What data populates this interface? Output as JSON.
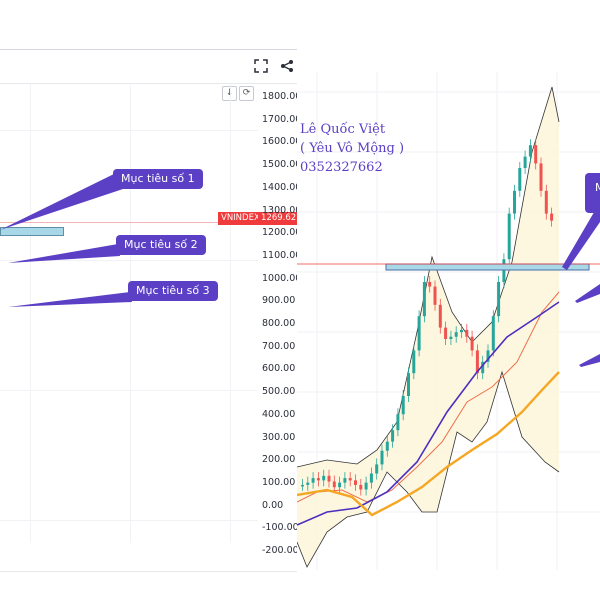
{
  "toolbar": {
    "fullscreen_icon": "fullscreen-icon",
    "share_icon": "share-icon"
  },
  "left_chart": {
    "mini_buttons": [
      "↓",
      "⟳"
    ],
    "price_tag": {
      "symbol": "VNINDEX",
      "value": "1269.62"
    },
    "targets": [
      {
        "label": "Mục tiêu số 1"
      },
      {
        "label": "Mục tiêu số 2"
      },
      {
        "label": "Mục tiêu số 3"
      }
    ],
    "axis_labels": [
      "1800.00",
      "1700.00",
      "1600.00",
      "1500.00",
      "1400.00",
      "1300.00",
      "1200.00",
      "1100.00",
      "1000.00",
      "900.00",
      "800.00",
      "700.00",
      "600.00",
      "500.00",
      "400.00",
      "300.00",
      "200.00",
      "100.00",
      "0.00",
      "-100.00",
      "-200.00"
    ]
  },
  "author": {
    "name": "Lê Quốc Việt",
    "alias": "( Yêu Vô Mộng )",
    "phone": "0352327662"
  },
  "right_chart": {
    "partial_label": "M"
  },
  "colors": {
    "accent": "#5b3fc4",
    "band": "#4a90a4",
    "price_red": "#ef3b3b",
    "ma_orange": "#f5a623",
    "ma_purple": "#4b2fbf"
  }
}
